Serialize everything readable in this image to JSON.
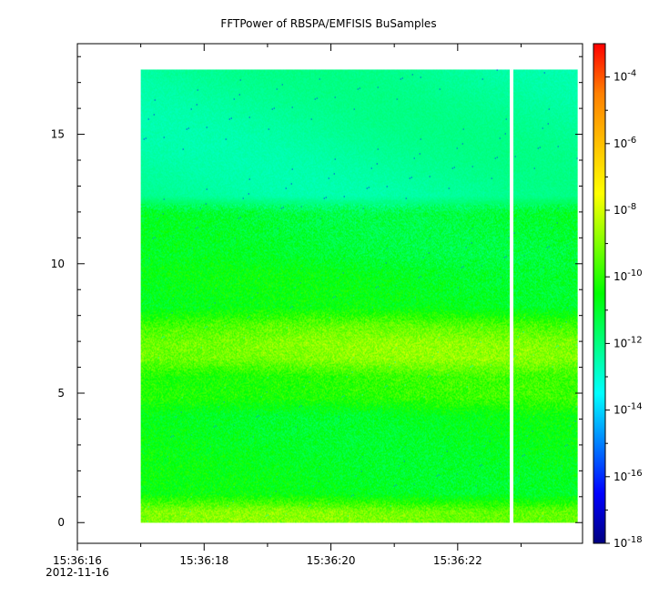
{
  "chart_data": {
    "type": "heatmap",
    "title": "FFTPower of RBSPA/EMFISIS  BuSamples",
    "xlabel": "",
    "ylabel": "",
    "x_axis": {
      "type": "time",
      "range": [
        "15:36:16.0",
        "15:36:23.9"
      ],
      "ticks": [
        {
          "value": 16,
          "label": "15:36:16",
          "sublabel": "2012-11-16"
        },
        {
          "value": 18,
          "label": "15:36:18"
        },
        {
          "value": 20,
          "label": "15:36:20"
        },
        {
          "value": 22,
          "label": "15:36:22"
        }
      ],
      "minor_ticks": [
        17,
        19,
        21,
        23
      ]
    },
    "y_axis": {
      "range": [
        -0.8,
        18.5
      ],
      "ticks": [
        {
          "value": 0,
          "label": "0"
        },
        {
          "value": 5,
          "label": "5"
        },
        {
          "value": 10,
          "label": "10"
        },
        {
          "value": 15,
          "label": "15"
        }
      ],
      "minor_ticks": [
        1,
        2,
        3,
        4,
        6,
        7,
        8,
        9,
        11,
        12,
        13,
        14,
        16,
        17,
        18
      ]
    },
    "data_extent": {
      "x_start": 17.0,
      "x_end": 23.9,
      "y_min": 0.0,
      "y_max": 17.5
    },
    "gaps": [
      {
        "x": 22.85
      }
    ],
    "color_scale": {
      "scale": "log",
      "range": [
        1e-18,
        0.001
      ],
      "ticks": [
        {
          "value": -4,
          "base": "10",
          "exp": "-4"
        },
        {
          "value": -6,
          "base": "10",
          "exp": "-6"
        },
        {
          "value": -8,
          "base": "10",
          "exp": "-8"
        },
        {
          "value": -10,
          "base": "10",
          "exp": "-10"
        },
        {
          "value": -12,
          "base": "10",
          "exp": "-12"
        },
        {
          "value": -14,
          "base": "10",
          "exp": "-14"
        },
        {
          "value": -16,
          "base": "10",
          "exp": "-16"
        },
        {
          "value": -18,
          "base": "10",
          "exp": "-18"
        }
      ],
      "stops": [
        "#000080",
        "#0000ff",
        "#0080ff",
        "#00ffff",
        "#00ff80",
        "#00ff00",
        "#80ff00",
        "#ffff00",
        "#ffc000",
        "#ff8000",
        "#ff0000"
      ]
    },
    "bands": [
      {
        "y_from": 0.0,
        "y_to": 0.8,
        "log_power": -9.1
      },
      {
        "y_from": 0.8,
        "y_to": 4.5,
        "log_power": -10.8
      },
      {
        "y_from": 4.5,
        "y_to": 6.0,
        "log_power": -10.0
      },
      {
        "y_from": 6.0,
        "y_to": 7.3,
        "log_power": -9.0
      },
      {
        "y_from": 7.3,
        "y_to": 8.0,
        "log_power": -9.6
      },
      {
        "y_from": 8.0,
        "y_to": 10.0,
        "log_power": -10.8
      },
      {
        "y_from": 10.0,
        "y_to": 12.3,
        "log_power": -11.1
      },
      {
        "y_from": 12.3,
        "y_to": 17.5,
        "log_power": -12.3
      }
    ]
  }
}
